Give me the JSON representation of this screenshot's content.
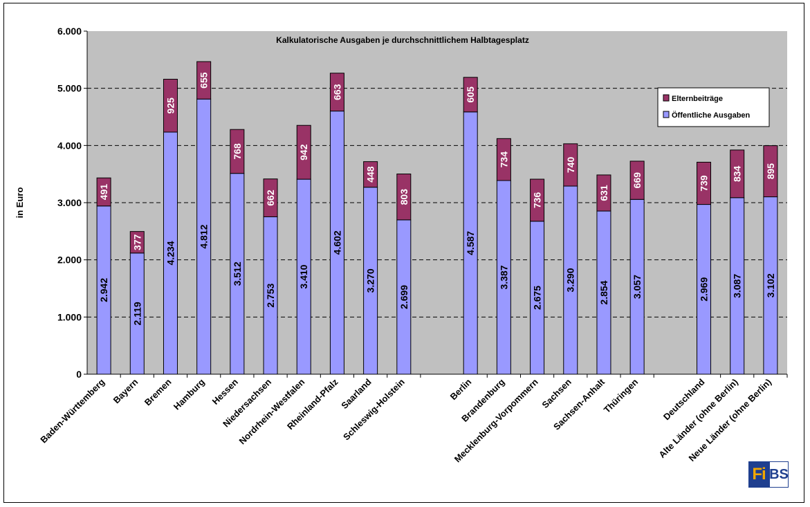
{
  "chart_data": {
    "type": "bar",
    "stacked": true,
    "title": "Kalkulatorische Ausgaben je durchschnittlichem Halbtagesplatz",
    "xlabel": "",
    "ylabel": "in Euro",
    "ylim": [
      0,
      6000
    ],
    "yticks": [
      "0",
      "1.000",
      "2.000",
      "3.000",
      "4.000",
      "5.000",
      "6.000"
    ],
    "grid": true,
    "legend_position": "right",
    "categories": [
      "Baden-Württemberg",
      "Bayern",
      "Bremen",
      "Hamburg",
      "Hessen",
      "Niedersachsen",
      "Nordrhein-Westfalen",
      "Rheinland-Pfalz",
      "Saarland",
      "Schleswig-Holstein",
      "Berlin",
      "Brandenburg",
      "Mecklenburg-Vorpommern",
      "Sachsen",
      "Sachsen-Anhalt",
      "Thüringen",
      "Deutschland",
      "Alte Länder (ohne Berlin)",
      "Neue Länder (ohne Berlin)"
    ],
    "series": [
      {
        "name": "Öffentliche Ausgaben",
        "color": "#9999ff",
        "values": [
          2942,
          2119,
          4234,
          4812,
          3512,
          2753,
          3410,
          4602,
          3270,
          2699,
          4587,
          3387,
          2675,
          3290,
          2854,
          3057,
          2969,
          3087,
          3102
        ],
        "labels": [
          "2.942",
          "2.119",
          "4.234",
          "4.812",
          "3.512",
          "2.753",
          "3.410",
          "4.602",
          "3.270",
          "2.699",
          "4.587",
          "3.387",
          "2.675",
          "3.290",
          "2.854",
          "3.057",
          "2.969",
          "3.087",
          "3.102"
        ]
      },
      {
        "name": "Elternbeiträge",
        "color": "#993366",
        "values": [
          491,
          377,
          925,
          655,
          768,
          662,
          942,
          663,
          448,
          803,
          605,
          734,
          736,
          740,
          631,
          669,
          739,
          834,
          895
        ],
        "labels": [
          "491",
          "377",
          "925",
          "655",
          "768",
          "662",
          "942",
          "663",
          "448",
          "803",
          "605",
          "734",
          "736",
          "740",
          "631",
          "669",
          "739",
          "834",
          "895"
        ]
      }
    ]
  },
  "logo": {
    "left_text": "Fi",
    "right_text": "BS"
  }
}
